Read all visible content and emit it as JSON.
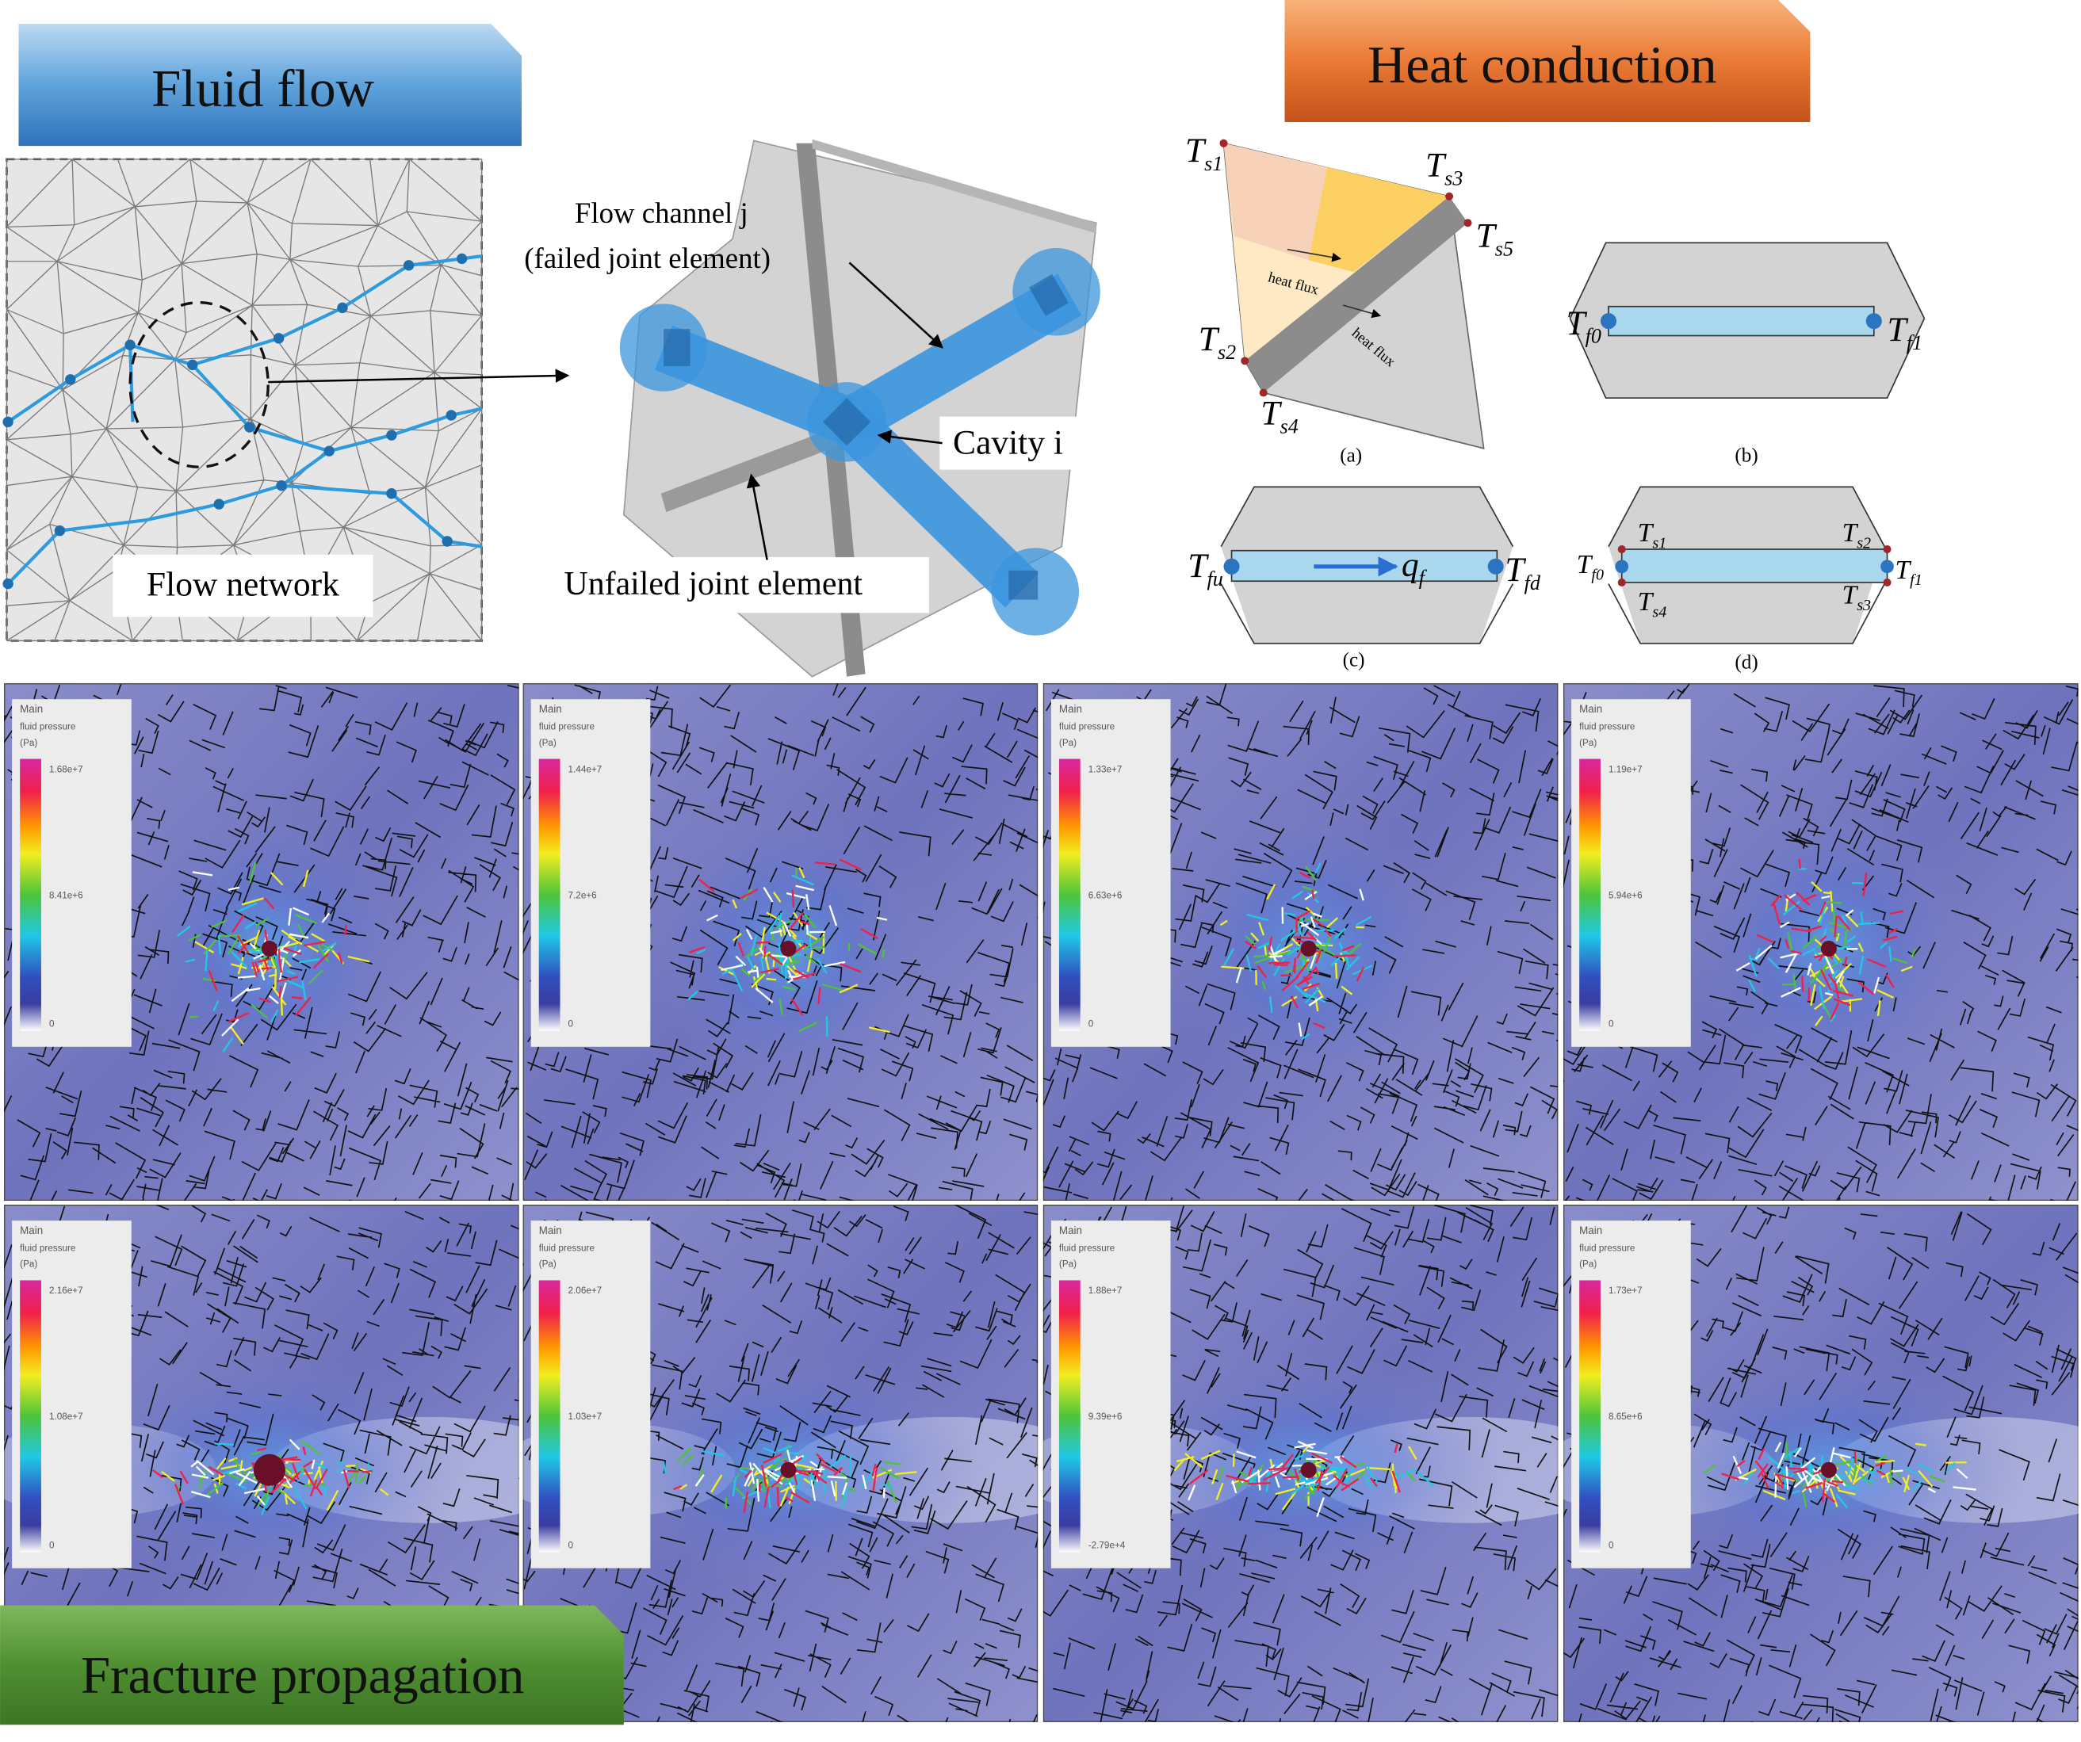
{
  "fluid_flow": {
    "title": "Fluid flow",
    "network_label": "Flow network",
    "channel_label": [
      "Flow channel j",
      "(failed joint element)"
    ],
    "cavity_label": "Cavity i",
    "unfailed_label": "Unfailed joint element"
  },
  "heat_conduction": {
    "title": "Heat conduction",
    "panel_a": {
      "caption": "(a)",
      "labels": [
        {
          "symbol": "T",
          "sub": "s1"
        },
        {
          "symbol": "T",
          "sub": "s2"
        },
        {
          "symbol": "T",
          "sub": "s3"
        },
        {
          "symbol": "T",
          "sub": "s4"
        },
        {
          "symbol": "T",
          "sub": "s5"
        }
      ],
      "flux_labels": [
        "heat flux",
        "heat flux"
      ]
    },
    "panel_b": {
      "caption": "(b)",
      "labels": [
        {
          "symbol": "T",
          "sub": "f0"
        },
        {
          "symbol": "T",
          "sub": "f1"
        }
      ]
    },
    "panel_c": {
      "caption": "(c)",
      "labels": [
        {
          "symbol": "T",
          "sub": "fu"
        },
        {
          "symbol": "T",
          "sub": "fd"
        },
        {
          "symbol": "q",
          "sub": "f"
        }
      ]
    },
    "panel_d": {
      "caption": "(d)",
      "labels": [
        {
          "symbol": "T",
          "sub": "s1"
        },
        {
          "symbol": "T",
          "sub": "s2"
        },
        {
          "symbol": "T",
          "sub": "s3"
        },
        {
          "symbol": "T",
          "sub": "s4"
        },
        {
          "symbol": "T",
          "sub": "f0"
        },
        {
          "symbol": "T",
          "sub": "f1"
        }
      ]
    }
  },
  "fracture_propagation": {
    "title": "Fracture propagation",
    "panels": [
      {
        "main": "Main",
        "quantity": "fluid pressure",
        "unit": "(Pa)",
        "max": "1.68e+7",
        "mid": "8.41e+6",
        "min": "0"
      },
      {
        "main": "Main",
        "quantity": "fluid pressure",
        "unit": "(Pa)",
        "max": "1.44e+7",
        "mid": "7.2e+6",
        "min": "0"
      },
      {
        "main": "Main",
        "quantity": "fluid pressure",
        "unit": "(Pa)",
        "max": "1.33e+7",
        "mid": "6.63e+6",
        "min": "0"
      },
      {
        "main": "Main",
        "quantity": "fluid pressure",
        "unit": "(Pa)",
        "max": "1.19e+7",
        "mid": "5.94e+6",
        "min": "0"
      },
      {
        "main": "Main",
        "quantity": "fluid pressure",
        "unit": "(Pa)",
        "max": "2.16e+7",
        "mid": "1.08e+7",
        "min": "0"
      },
      {
        "main": "Main",
        "quantity": "fluid pressure",
        "unit": "(Pa)",
        "max": "2.06e+7",
        "mid": "1.03e+7",
        "min": "0"
      },
      {
        "main": "Main",
        "quantity": "fluid pressure",
        "unit": "(Pa)",
        "max": "1.88e+7",
        "mid": "9.39e+6",
        "min": "-2.79e+4"
      },
      {
        "main": "Main",
        "quantity": "fluid pressure",
        "unit": "(Pa)",
        "max": "1.73e+7",
        "mid": "8.65e+6",
        "min": "0"
      }
    ]
  }
}
